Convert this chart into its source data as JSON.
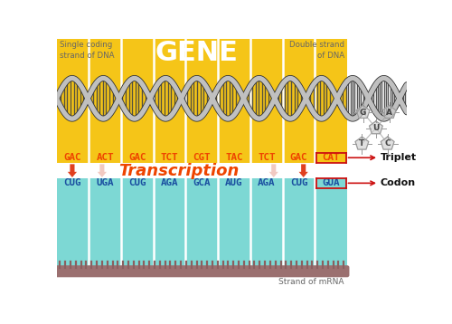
{
  "bg_color": "#FFFFFF",
  "dna_bg_color": "#F5C518",
  "mrna_bg_color": "#7DD8D4",
  "gene_label": "GENE",
  "gene_color": "#FFFFFF",
  "single_strand_label": "Single coding\nstrand of DNA",
  "double_strand_label": "Double strand\nof DNA",
  "triplet_label": "Triplet",
  "codon_label": "Codon",
  "mrna_label": "Strand of mRNA",
  "transcription_label": "Transcription",
  "transcription_color": "#EE4400",
  "dna_triplets": [
    "GAC",
    "ACT",
    "GAC",
    "TCT",
    "CGT",
    "TAC",
    "TCT",
    "GAC",
    "CAT"
  ],
  "mrna_codons": [
    "CUG",
    "UGA",
    "CUG",
    "AGA",
    "GCA",
    "AUG",
    "AGA",
    "CUG",
    "GUA"
  ],
  "dna_seq_color": "#EE4400",
  "mrna_seq_color": "#1a4fa0",
  "divider_color": "#FFFFFF",
  "spine_color": "#C0C0C0",
  "rung_color": "#555555",
  "bracket_color": "#CC1111",
  "mrna_backbone_color": "#9B7070",
  "mrna_tick_color": "#8B6060",
  "arrow_strong_color": "#E04020",
  "arrow_light_color": "#E8A090",
  "label_color": "#666666",
  "nuc_shape_color": "#CCCCCC",
  "nuc_line_color": "#999999",
  "nuc_text_color": "#444444"
}
